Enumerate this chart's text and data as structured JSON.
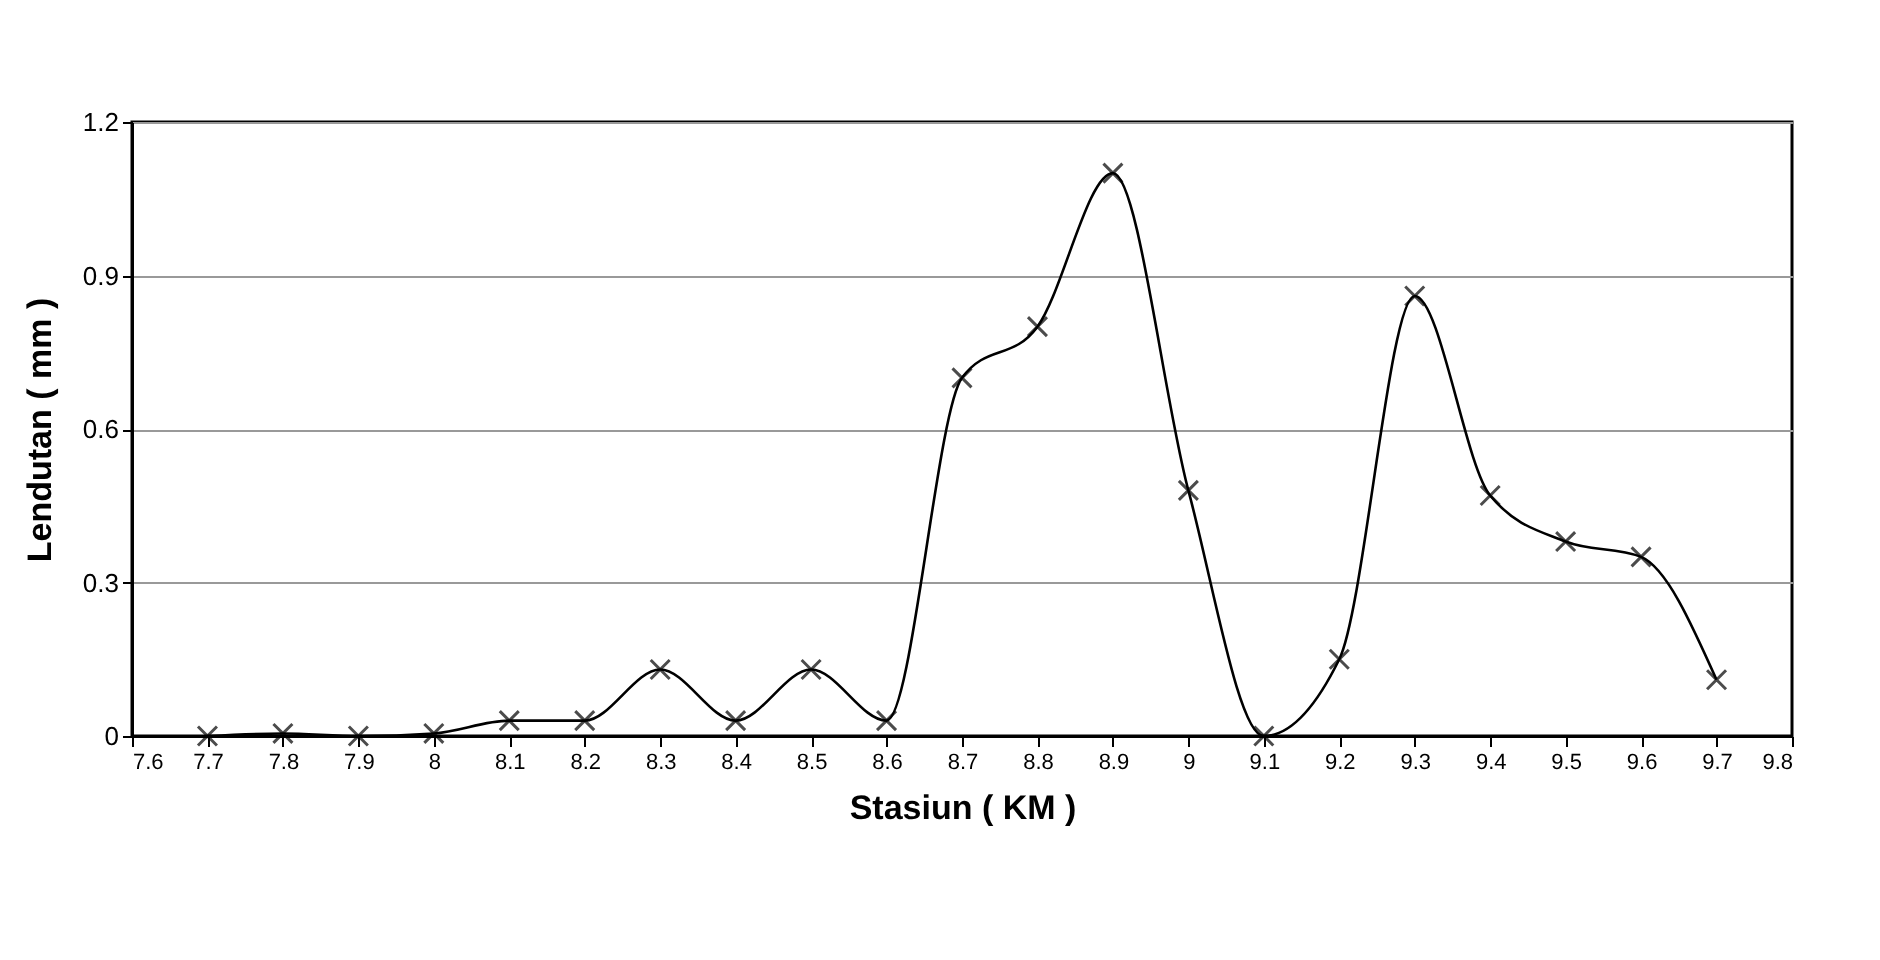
{
  "chart_data": {
    "type": "line",
    "xlabel": "Stasiun ( KM )",
    "ylabel": "Lendutan ( mm )",
    "x": [
      7.7,
      7.8,
      7.9,
      8,
      8.1,
      8.2,
      8.3,
      8.4,
      8.5,
      8.6,
      8.7,
      8.8,
      8.9,
      9,
      9.1,
      9.2,
      9.3,
      9.4,
      9.5,
      9.6,
      9.7
    ],
    "series": [
      {
        "color": "#000000",
        "values": [
          0,
          0.005,
          0,
          0.005,
          0.03,
          0.03,
          0.13,
          0.03,
          0.13,
          0.03,
          0.7,
          0.8,
          1.1,
          0.48,
          0,
          0.15,
          0.86,
          0.47,
          0.38,
          0.35,
          0.11
        ]
      }
    ],
    "xlim": [
      7.6,
      9.8
    ],
    "xticks": [
      7.6,
      7.7,
      7.8,
      7.9,
      8,
      8.1,
      8.2,
      8.3,
      8.4,
      8.5,
      8.6,
      8.7,
      8.8,
      8.9,
      9,
      9.1,
      9.2,
      9.3,
      9.4,
      9.5,
      9.6,
      9.7,
      9.8
    ],
    "ylim": [
      0,
      1.2
    ],
    "yticks": [
      0,
      0.3,
      0.6,
      0.9,
      1.2
    ],
    "grid": "y",
    "marker": "cross",
    "line_style": "solid"
  }
}
